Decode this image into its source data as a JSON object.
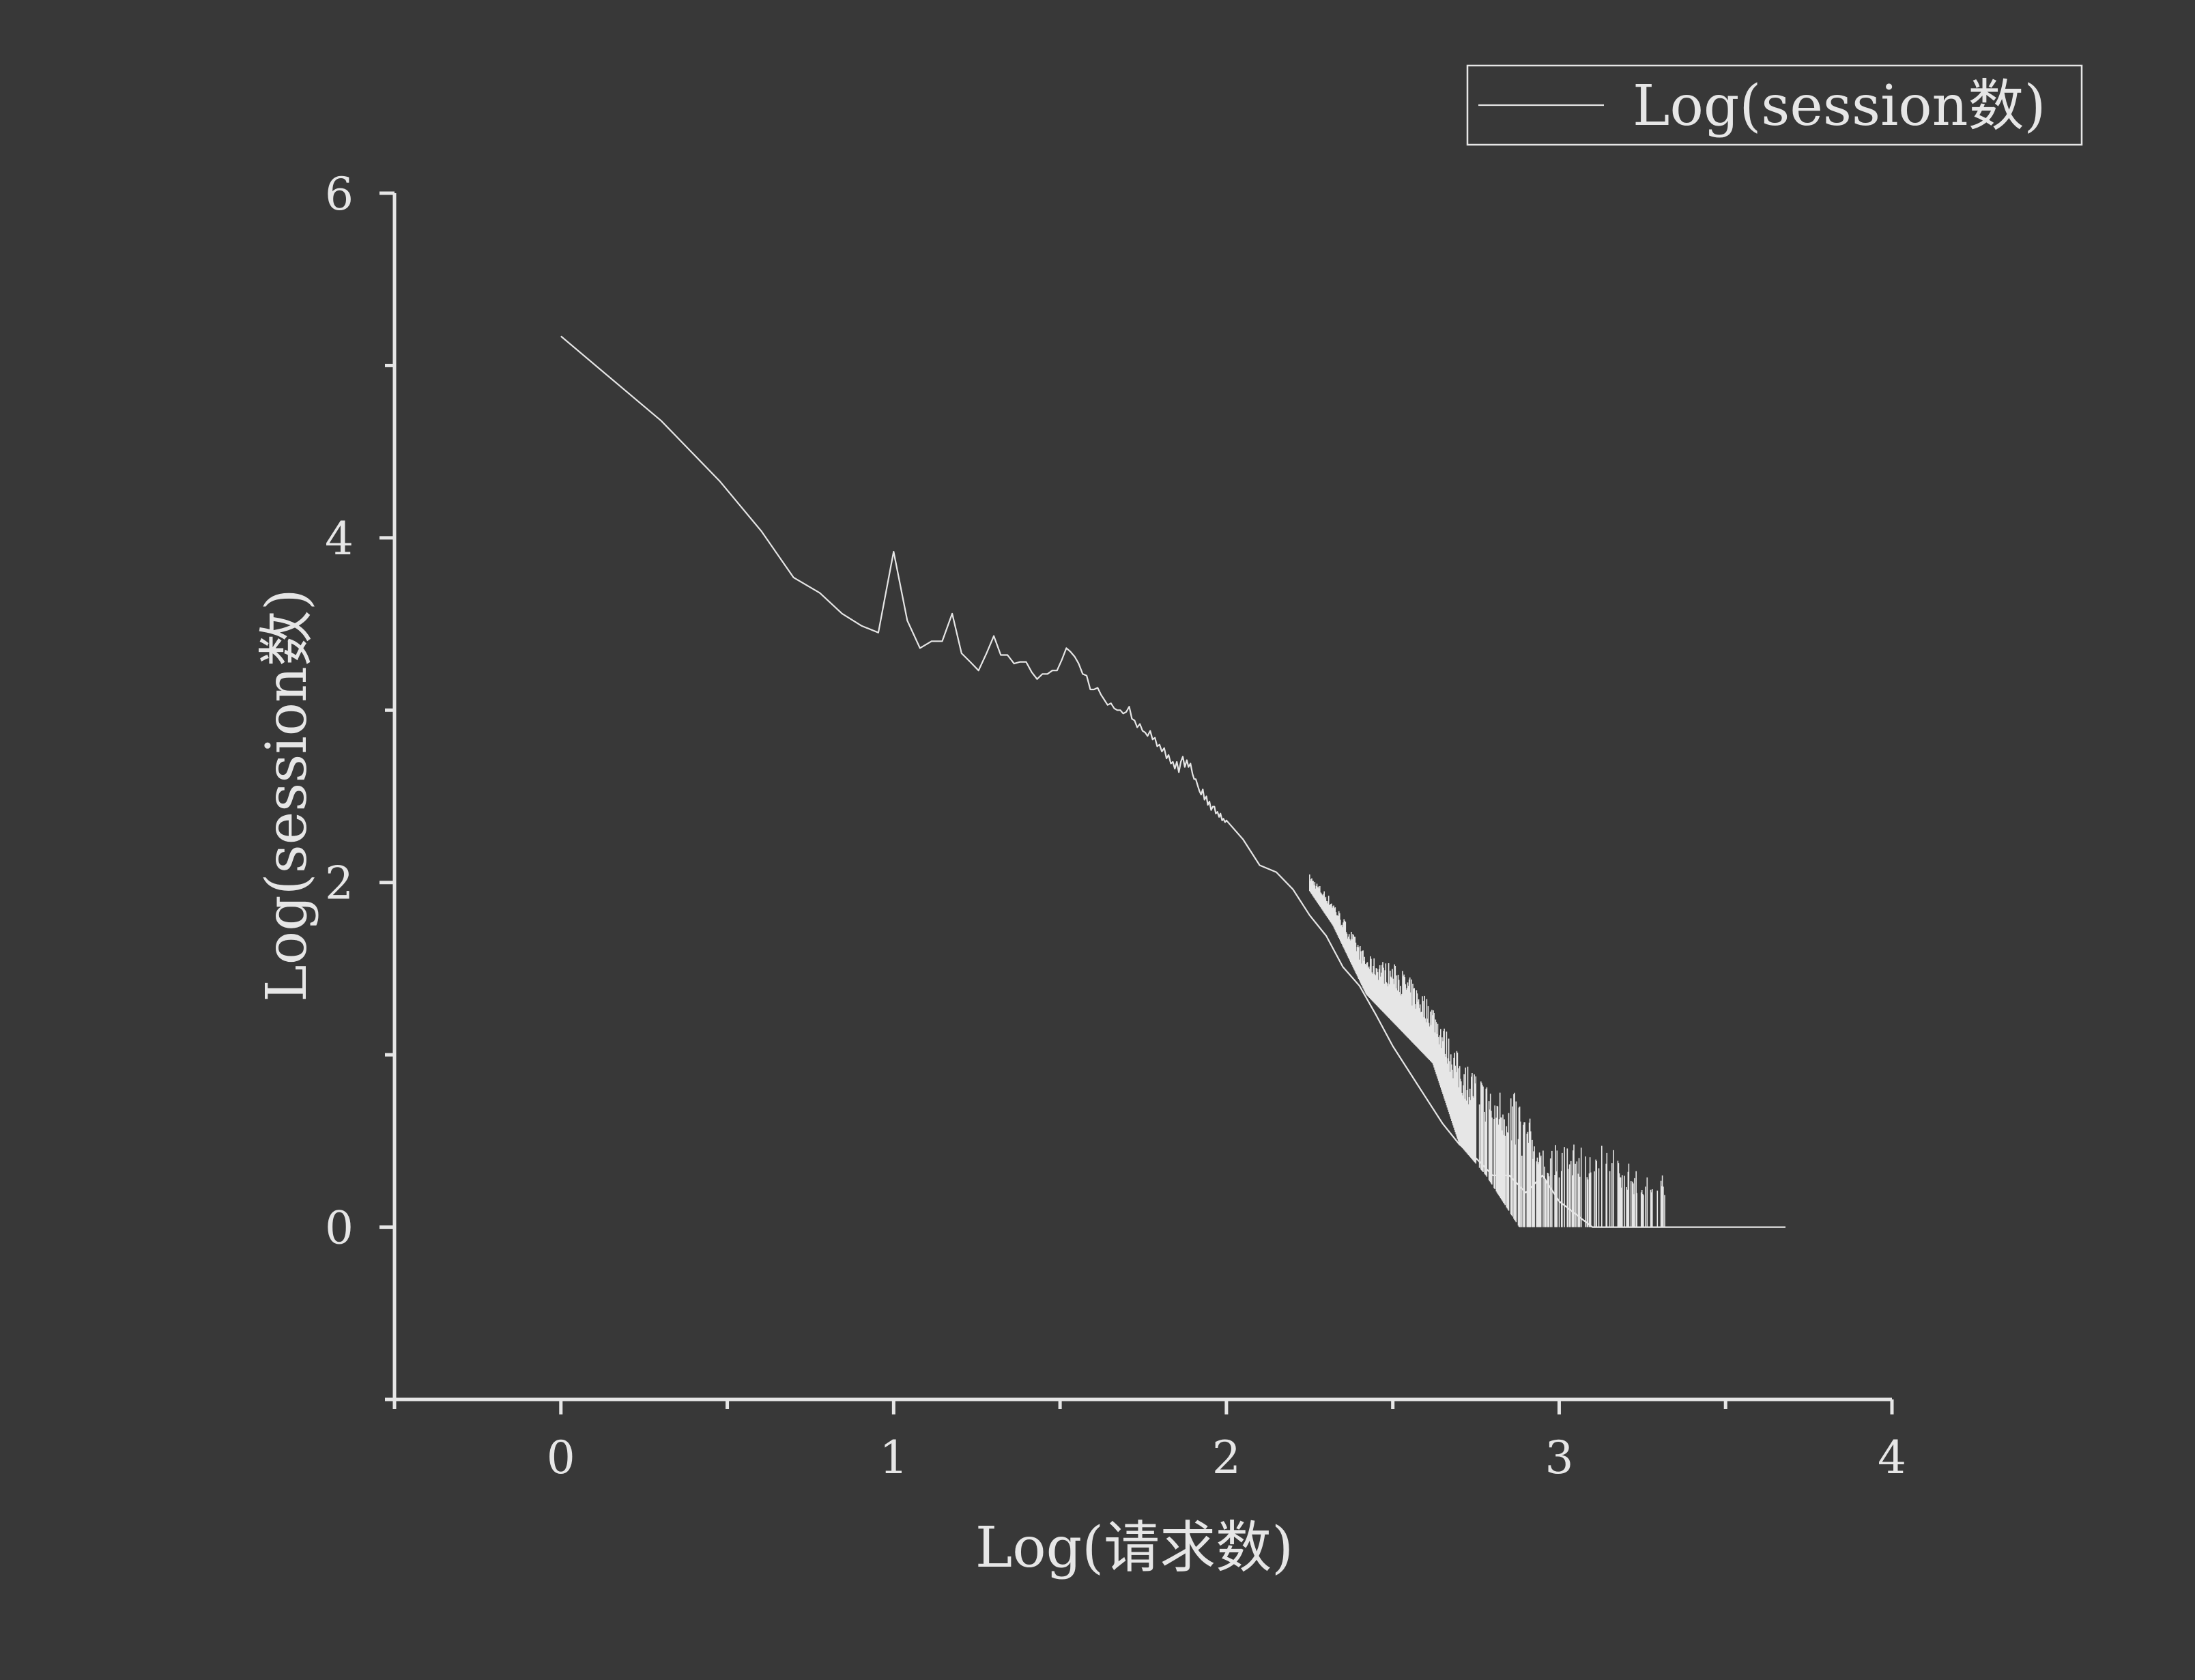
{
  "chart_data": {
    "type": "line",
    "xlabel": "Log(请求数)",
    "ylabel": "Log(session数)",
    "xlim": [
      -0.5,
      4
    ],
    "ylim": [
      -1,
      6
    ],
    "xticks": [
      0,
      1,
      2,
      3,
      4
    ],
    "yticks": [
      0,
      2,
      4,
      6
    ],
    "legend_position": "top-right",
    "colors": {
      "background": "#383838",
      "foreground": "#e6e6e6"
    },
    "series": [
      {
        "name": "Log(session数)",
        "x": [
          0,
          0.301,
          0.477,
          0.602,
          0.699,
          0.778,
          0.845,
          0.903,
          0.954,
          1.0,
          1.041,
          1.079,
          1.114,
          1.146,
          1.176,
          1.204,
          1.23,
          1.255,
          1.279,
          1.301,
          1.322,
          1.342,
          1.362,
          1.38,
          1.398,
          1.415,
          1.431,
          1.447,
          1.462,
          1.477,
          1.491,
          1.505,
          1.519,
          1.531,
          1.544,
          1.556,
          1.568,
          1.58,
          1.591,
          1.602,
          1.613,
          1.623,
          1.633,
          1.643,
          1.653,
          1.663,
          1.672,
          1.681,
          1.69,
          1.699,
          1.708,
          1.716,
          1.724,
          1.732,
          1.74,
          1.748,
          1.756,
          1.763,
          1.771,
          1.778,
          1.785,
          1.792,
          1.799,
          1.806,
          1.813,
          1.82,
          1.826,
          1.833,
          1.839,
          1.845,
          1.851,
          1.857,
          1.863,
          1.869,
          1.875,
          1.881,
          1.886,
          1.892,
          1.898,
          1.903,
          1.908,
          1.914,
          1.919,
          1.924,
          1.929,
          1.934,
          1.94,
          1.944,
          1.949,
          1.954,
          1.959,
          1.964,
          1.968,
          1.973,
          1.978,
          1.982,
          1.987,
          1.991,
          1.996,
          2.0,
          2.05,
          2.1,
          2.15,
          2.2,
          2.25,
          2.3,
          2.35,
          2.4,
          2.45,
          2.5,
          2.55,
          2.6,
          2.65,
          2.7,
          2.75,
          2.8,
          2.85,
          2.9,
          2.95,
          3.0,
          3.1,
          3.2,
          3.3,
          3.4,
          3.5,
          3.6,
          3.68
        ],
        "values": [
          5.17,
          4.68,
          4.33,
          4.04,
          3.77,
          3.68,
          3.56,
          3.49,
          3.45,
          3.92,
          3.52,
          3.36,
          3.4,
          3.4,
          3.56,
          3.33,
          3.28,
          3.23,
          3.33,
          3.43,
          3.32,
          3.32,
          3.27,
          3.28,
          3.28,
          3.22,
          3.18,
          3.21,
          3.21,
          3.23,
          3.23,
          3.29,
          3.36,
          3.34,
          3.31,
          3.27,
          3.21,
          3.2,
          3.12,
          3.12,
          3.13,
          3.09,
          3.06,
          3.03,
          3.04,
          3.01,
          3.0,
          3.0,
          2.98,
          2.99,
          3.02,
          2.95,
          2.94,
          2.9,
          2.92,
          2.88,
          2.87,
          2.85,
          2.88,
          2.83,
          2.84,
          2.79,
          2.8,
          2.76,
          2.78,
          2.72,
          2.74,
          2.69,
          2.7,
          2.66,
          2.7,
          2.64,
          2.7,
          2.73,
          2.67,
          2.71,
          2.67,
          2.69,
          2.63,
          2.6,
          2.6,
          2.56,
          2.53,
          2.51,
          2.54,
          2.48,
          2.5,
          2.45,
          2.47,
          2.42,
          2.44,
          2.44,
          2.4,
          2.41,
          2.38,
          2.4,
          2.36,
          2.37,
          2.35,
          2.36,
          2.25,
          2.1,
          2.06,
          1.96,
          1.81,
          1.69,
          1.51,
          1.4,
          1.23,
          1.05,
          0.9,
          0.75,
          0.6,
          0.48,
          0.4,
          0.3,
          0.3,
          0.2,
          0.3,
          0.15,
          0.0,
          0.0,
          0.0,
          0.0,
          0.0,
          0.0,
          0.0
        ]
      }
    ],
    "scatter_band": {
      "x_range": [
        2.25,
        3.32
      ],
      "high": [
        2.25,
        2.32,
        2.42,
        2.52,
        2.62,
        2.7,
        2.78,
        2.88,
        2.95,
        3.05,
        3.15,
        3.25,
        3.32
      ],
      "high_values": [
        2.05,
        1.9,
        1.58,
        1.52,
        1.3,
        1.0,
        0.85,
        0.77,
        0.48,
        0.48,
        0.48,
        0.3,
        0.3
      ],
      "low_values": [
        1.95,
        1.75,
        1.35,
        1.15,
        0.95,
        0.48,
        0.3,
        0.0,
        0.0,
        0.0,
        0.0,
        0.0,
        0.0
      ]
    }
  }
}
